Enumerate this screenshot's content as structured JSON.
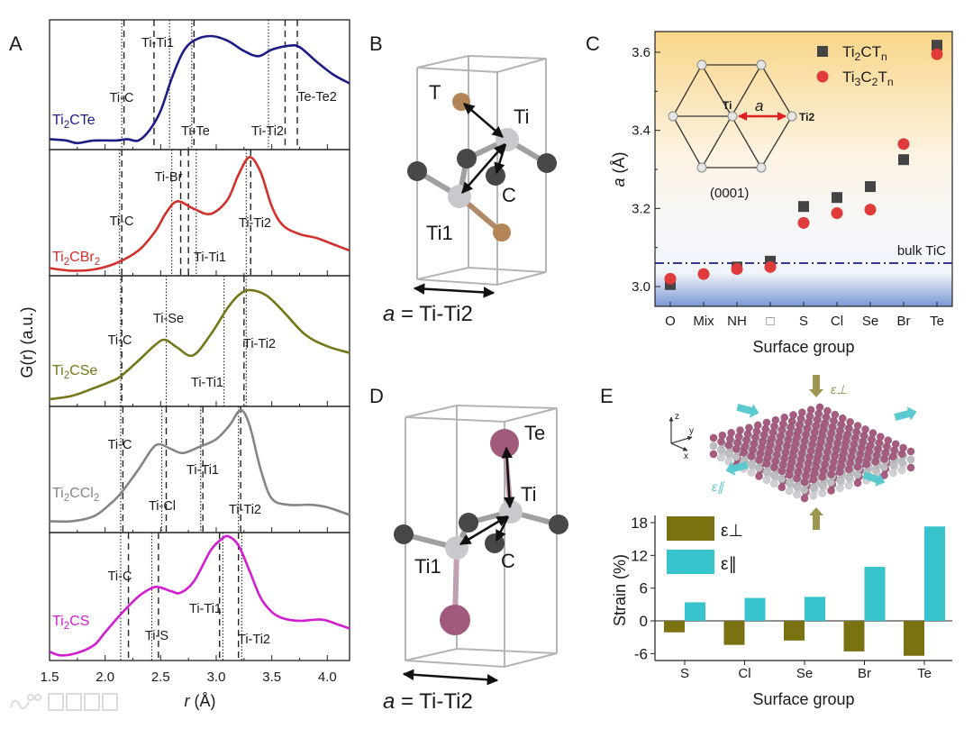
{
  "panel_labels": {
    "A": "A",
    "B": "B",
    "C": "C",
    "D": "D",
    "E": "E"
  },
  "watermark": "大数跨境",
  "panel_b": {
    "T": "T",
    "Ti": "Ti",
    "C": "C",
    "Ti1": "Ti1",
    "caption_a": "a",
    "caption_rest": " = Ti-Ti2"
  },
  "panel_d": {
    "Te": "Te",
    "Ti": "Ti",
    "C": "C",
    "Ti1": "Ti1",
    "caption_a": "a",
    "caption_rest": " = Ti-Ti2"
  },
  "panel_c_inset": {
    "Ti": "Ti",
    "a": "a",
    "Ti2": "Ti2",
    "plane": "(0001)"
  },
  "panel_e_inset": {
    "axis_z": "z",
    "axis_y": "y",
    "axis_x": "x",
    "eps_perp": "ε⊥",
    "eps_par": "ε∥"
  },
  "colors": {
    "Ti2CTe": "#1c1c86",
    "Ti2CBr2": "#d2302c",
    "Ti2CSe": "#76761a",
    "Ti2CCl2": "#858585",
    "Ti2CS": "#d01ed0",
    "square": "#444444",
    "circle": "#e03a3a",
    "bulk": "#1c1c86",
    "eps_perp": "#7a7210",
    "eps_par": "#38c4cc"
  },
  "chart_data": [
    {
      "type": "line",
      "title": "A",
      "xlabel_var": "r",
      "xlabel_unit": " (Å)",
      "ylabel": "G(r) (a.u.)",
      "xlim": [
        1.5,
        4.2
      ],
      "xticks": [
        "1.5",
        "2.0",
        "2.5",
        "3.0",
        "3.5",
        "4.0"
      ],
      "series": [
        {
          "name": "Ti2CTe",
          "r": [
            1.5,
            1.65,
            1.75,
            1.9,
            2.1,
            2.2,
            2.3,
            2.4,
            2.5,
            2.6,
            2.7,
            2.8,
            2.95,
            3.1,
            3.25,
            3.38,
            3.5,
            3.65,
            3.75,
            3.9,
            4.05,
            4.2
          ],
          "g": [
            0.08,
            0.07,
            0.05,
            0.07,
            0.07,
            0.08,
            0.07,
            0.15,
            0.3,
            0.55,
            0.75,
            0.84,
            0.875,
            0.84,
            0.76,
            0.72,
            0.77,
            0.8,
            0.79,
            0.68,
            0.58,
            0.51
          ],
          "lines": [
            {
              "r": 2.15,
              "style": "dot"
            },
            {
              "r": 2.17,
              "style": "dash"
            },
            {
              "r": 2.44,
              "style": "dash"
            },
            {
              "r": 2.58,
              "style": "dot"
            },
            {
              "r": 2.78,
              "style": "dot"
            },
            {
              "r": 2.8,
              "style": "dash"
            },
            {
              "r": 3.47,
              "style": "dot"
            },
            {
              "r": 3.62,
              "style": "dash"
            },
            {
              "r": 3.73,
              "style": "dash"
            }
          ],
          "labels": [
            "Ti-C",
            "Ti-Ti1",
            "Ti-Te",
            "Ti-Ti2",
            "Te-Te2"
          ]
        },
        {
          "name": "Ti2CBr2",
          "r": [
            1.5,
            1.7,
            1.9,
            2.1,
            2.3,
            2.45,
            2.55,
            2.65,
            2.8,
            2.95,
            3.1,
            3.2,
            3.3,
            3.4,
            3.5,
            3.6,
            3.75,
            3.9,
            4.05,
            4.2
          ],
          "g": [
            0.06,
            0.04,
            0.05,
            0.1,
            0.2,
            0.35,
            0.5,
            0.59,
            0.53,
            0.49,
            0.6,
            0.8,
            0.94,
            0.82,
            0.55,
            0.4,
            0.33,
            0.3,
            0.25,
            0.2
          ],
          "lines": [
            {
              "r": 2.13,
              "style": "dot"
            },
            {
              "r": 2.15,
              "style": "dash"
            },
            {
              "r": 2.6,
              "style": "dot"
            },
            {
              "r": 2.68,
              "style": "dash"
            },
            {
              "r": 2.75,
              "style": "dash"
            },
            {
              "r": 2.82,
              "style": "dot"
            },
            {
              "r": 3.27,
              "style": "dot"
            },
            {
              "r": 3.31,
              "style": "dash"
            }
          ],
          "labels": [
            "Ti-Br",
            "Ti-C",
            "Ti-Ti1",
            "Ti-Ti2"
          ]
        },
        {
          "name": "Ti2CSe",
          "r": [
            1.5,
            1.7,
            1.9,
            2.05,
            2.14,
            2.3,
            2.45,
            2.54,
            2.65,
            2.79,
            2.95,
            3.1,
            3.2,
            3.3,
            3.45,
            3.6,
            3.8,
            4.0,
            4.2
          ],
          "g": [
            0.055,
            0.08,
            0.14,
            0.19,
            0.23,
            0.35,
            0.47,
            0.51,
            0.45,
            0.39,
            0.55,
            0.75,
            0.85,
            0.89,
            0.85,
            0.73,
            0.55,
            0.46,
            0.41
          ],
          "lines": [
            {
              "r": 2.14,
              "style": "dot"
            },
            {
              "r": 2.15,
              "style": "dash"
            },
            {
              "r": 2.55,
              "style": "dot"
            },
            {
              "r": 3.07,
              "style": "dot"
            },
            {
              "r": 3.25,
              "style": "dash"
            },
            {
              "r": 3.27,
              "style": "dot"
            }
          ],
          "labels": [
            "Ti-C",
            "Ti-Se",
            "Ti-Ti2",
            "Ti-Ti1"
          ]
        },
        {
          "name": "Ti2CCl2",
          "r": [
            1.5,
            1.7,
            1.9,
            2.05,
            2.14,
            2.3,
            2.42,
            2.49,
            2.6,
            2.7,
            2.85,
            3.0,
            3.12,
            3.22,
            3.3,
            3.4,
            3.5,
            3.65,
            3.85,
            4.0,
            4.2
          ],
          "g": [
            0.09,
            0.09,
            0.13,
            0.23,
            0.31,
            0.5,
            0.66,
            0.7,
            0.66,
            0.63,
            0.68,
            0.74,
            0.85,
            0.97,
            0.85,
            0.5,
            0.27,
            0.22,
            0.22,
            0.2,
            0.14
          ],
          "lines": [
            {
              "r": 2.14,
              "style": "dot"
            },
            {
              "r": 2.16,
              "style": "dash"
            },
            {
              "r": 2.51,
              "style": "dot"
            },
            {
              "r": 2.55,
              "style": "dash"
            },
            {
              "r": 2.86,
              "style": "dot"
            },
            {
              "r": 2.88,
              "style": "dash"
            },
            {
              "r": 3.2,
              "style": "dot"
            },
            {
              "r": 3.22,
              "style": "dash"
            }
          ],
          "labels": [
            "Ti-C",
            "Ti-Ti1",
            "Ti-Cl",
            "Ti-Ti2"
          ]
        },
        {
          "name": "Ti2CS",
          "r": [
            1.5,
            1.6,
            1.75,
            1.9,
            2.0,
            2.14,
            2.3,
            2.43,
            2.5,
            2.6,
            2.68,
            2.8,
            2.95,
            3.05,
            3.11,
            3.2,
            3.3,
            3.4,
            3.5,
            3.6,
            3.75,
            3.95,
            4.1,
            4.2
          ],
          "g": [
            0.07,
            0.04,
            0.06,
            0.12,
            0.22,
            0.36,
            0.5,
            0.57,
            0.57,
            0.54,
            0.53,
            0.62,
            0.86,
            0.95,
            0.97,
            0.9,
            0.7,
            0.49,
            0.38,
            0.33,
            0.31,
            0.32,
            0.28,
            0.25
          ],
          "lines": [
            {
              "r": 2.14,
              "style": "dot"
            },
            {
              "r": 2.21,
              "style": "dash"
            },
            {
              "r": 2.42,
              "style": "dot"
            },
            {
              "r": 2.48,
              "style": "dash"
            },
            {
              "r": 3.03,
              "style": "dash"
            },
            {
              "r": 3.06,
              "style": "dot"
            },
            {
              "r": 3.2,
              "style": "dash"
            },
            {
              "r": 3.23,
              "style": "dot"
            }
          ],
          "labels": [
            "Ti-C",
            "Ti-Ti1",
            "Ti-S",
            "Ti-Ti2"
          ]
        }
      ]
    },
    {
      "type": "scatter",
      "title": "C",
      "xlabel": "Surface group",
      "ylabel_var": "a",
      "ylabel_unit": " (Å)",
      "categories": [
        "O",
        "Mix",
        "NH",
        "□",
        "S",
        "Cl",
        "Se",
        "Br",
        "Te"
      ],
      "ylim": [
        2.95,
        3.65
      ],
      "yticks": [
        "3.0",
        "3.2",
        "3.4",
        "3.6"
      ],
      "series": [
        {
          "name": "Ti2CTn",
          "marker": "square",
          "values": [
            3.005,
            null,
            3.05,
            3.065,
            3.205,
            3.228,
            3.256,
            3.325,
            3.618
          ]
        },
        {
          "name": "Ti3C2Tn",
          "marker": "circle",
          "values": [
            3.02,
            3.032,
            3.045,
            3.05,
            3.163,
            3.188,
            3.197,
            3.365,
            3.595
          ]
        }
      ],
      "reference": {
        "label": "bulk TiC",
        "value": 3.06
      }
    },
    {
      "type": "bar",
      "title": "E",
      "xlabel": "Surface group",
      "ylabel": "Strain (%)",
      "categories": [
        "S",
        "Cl",
        "Se",
        "Br",
        "Te"
      ],
      "ylim": [
        -6.5,
        19
      ],
      "yticks": [
        "-6",
        "0",
        "6",
        "12",
        "18"
      ],
      "series": [
        {
          "name": "ε⊥",
          "values": [
            -2.1,
            -4.4,
            -3.6,
            -5.6,
            -6.4
          ]
        },
        {
          "name": "ε∥",
          "values": [
            3.4,
            4.2,
            4.4,
            9.9,
            17.3
          ]
        }
      ]
    }
  ]
}
